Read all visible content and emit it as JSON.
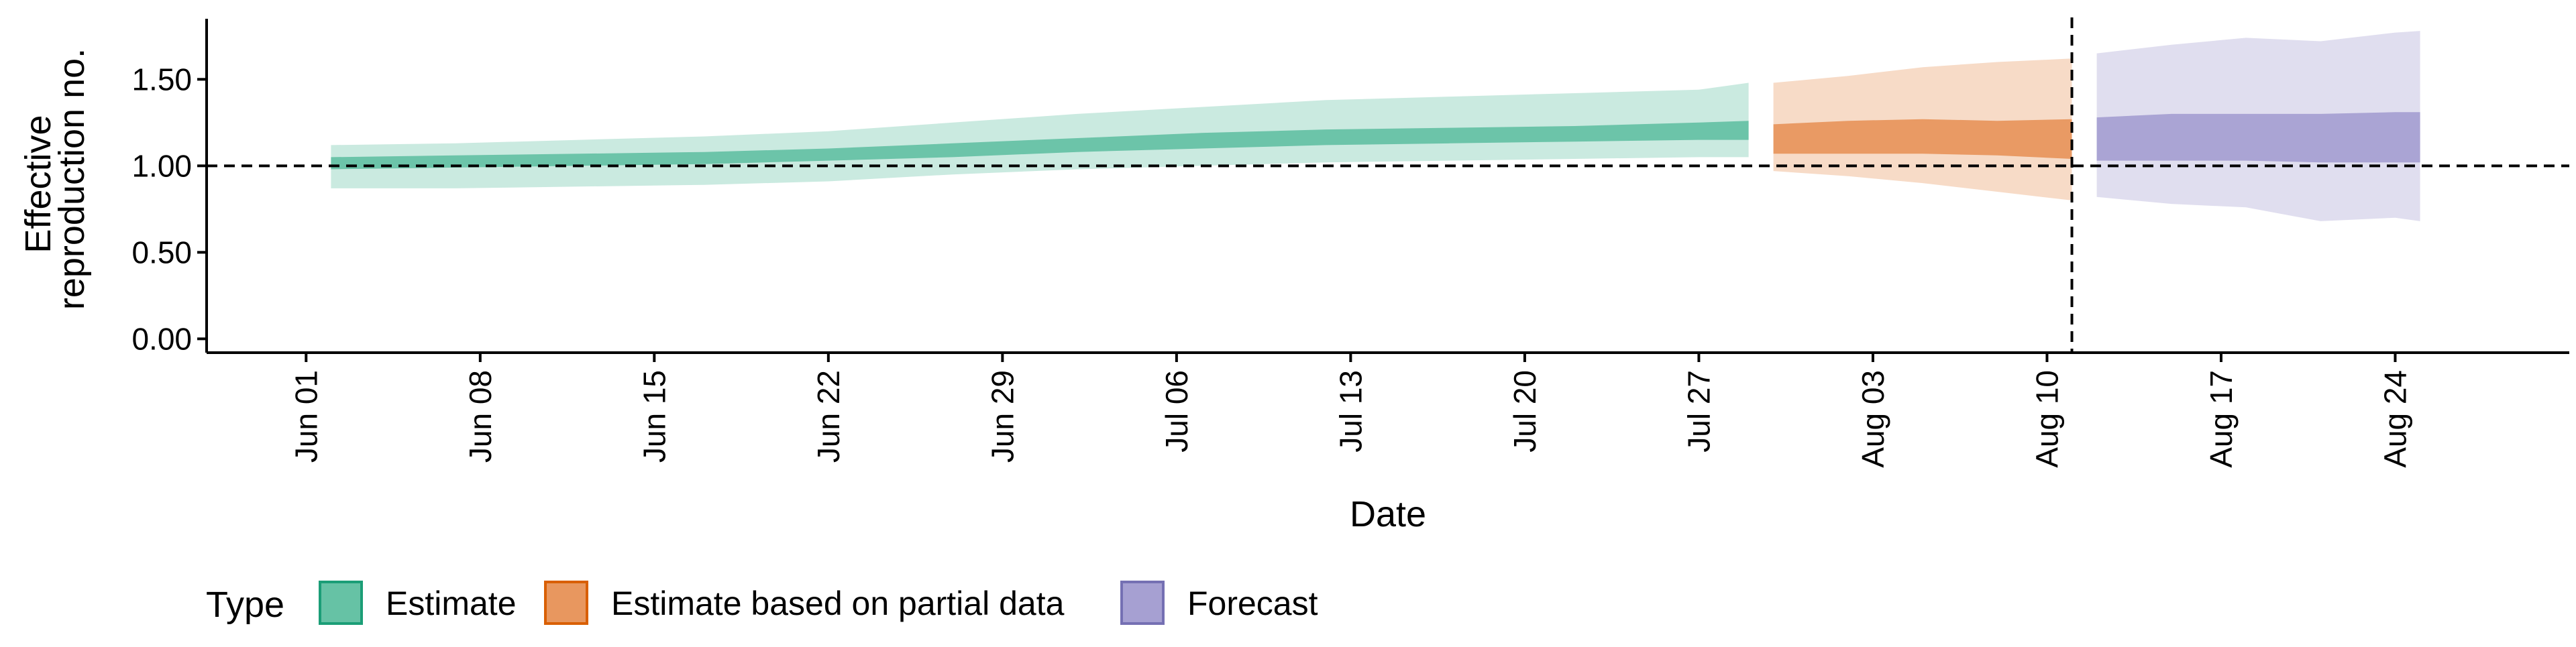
{
  "chart_data": {
    "type": "area",
    "xlabel": "Date",
    "ylabel_lines": [
      "Effective",
      "reproduction no."
    ],
    "x_ticks": [
      {
        "label": "Jun 01",
        "date": "2020-06-01"
      },
      {
        "label": "Jun 08",
        "date": "2020-06-08"
      },
      {
        "label": "Jun 15",
        "date": "2020-06-15"
      },
      {
        "label": "Jun 22",
        "date": "2020-06-22"
      },
      {
        "label": "Jun 29",
        "date": "2020-06-29"
      },
      {
        "label": "Jul 06",
        "date": "2020-07-06"
      },
      {
        "label": "Jul 13",
        "date": "2020-07-13"
      },
      {
        "label": "Jul 20",
        "date": "2020-07-20"
      },
      {
        "label": "Jul 27",
        "date": "2020-07-27"
      },
      {
        "label": "Aug 03",
        "date": "2020-08-03"
      },
      {
        "label": "Aug 10",
        "date": "2020-08-10"
      },
      {
        "label": "Aug 17",
        "date": "2020-08-17"
      },
      {
        "label": "Aug 24",
        "date": "2020-08-24"
      }
    ],
    "xlim": [
      "2020-05-28",
      "2020-08-31"
    ],
    "y_ticks": [
      {
        "label": "0.00",
        "value": 0
      },
      {
        "label": "0.50",
        "value": 0.5
      },
      {
        "label": "1.00",
        "value": 1
      },
      {
        "label": "1.50",
        "value": 1.5
      }
    ],
    "ylim": [
      -0.08,
      1.85
    ],
    "reference_lines": {
      "horizontal_y": 1.0,
      "vertical_x": "2020-08-11"
    },
    "legend": {
      "title": "Type",
      "position": "bottom-left",
      "items": [
        {
          "label": "Estimate",
          "fill": "#66c2a5",
          "stroke": "#1b9e77"
        },
        {
          "label": "Estimate based on partial data",
          "fill": "#e8975f",
          "stroke": "#d95f02"
        },
        {
          "label": "Forecast",
          "fill": "#a6a0d2",
          "stroke": "#7570b3"
        }
      ]
    },
    "series": [
      {
        "name": "Estimate",
        "color": "#1b9e77",
        "x": [
          "2020-06-02",
          "2020-06-07",
          "2020-06-12",
          "2020-06-17",
          "2020-06-22",
          "2020-06-27",
          "2020-07-02",
          "2020-07-07",
          "2020-07-12",
          "2020-07-17",
          "2020-07-22",
          "2020-07-27",
          "2020-07-29"
        ],
        "outer_lower": [
          0.87,
          0.87,
          0.88,
          0.89,
          0.91,
          0.95,
          0.98,
          1.0,
          1.02,
          1.03,
          1.04,
          1.05,
          1.05
        ],
        "outer_upper": [
          1.12,
          1.13,
          1.15,
          1.17,
          1.2,
          1.25,
          1.3,
          1.34,
          1.38,
          1.4,
          1.42,
          1.44,
          1.48
        ],
        "inner_lower": [
          0.98,
          0.99,
          1.0,
          1.01,
          1.03,
          1.05,
          1.08,
          1.1,
          1.12,
          1.13,
          1.14,
          1.15,
          1.15
        ],
        "inner_upper": [
          1.05,
          1.06,
          1.07,
          1.08,
          1.1,
          1.13,
          1.16,
          1.19,
          1.21,
          1.22,
          1.23,
          1.25,
          1.26
        ]
      },
      {
        "name": "Estimate based on partial data",
        "color": "#d95f02",
        "x": [
          "2020-07-30",
          "2020-08-02",
          "2020-08-05",
          "2020-08-08",
          "2020-08-11"
        ],
        "outer_lower": [
          0.97,
          0.94,
          0.9,
          0.85,
          0.8
        ],
        "outer_upper": [
          1.48,
          1.52,
          1.57,
          1.6,
          1.62
        ],
        "inner_lower": [
          1.07,
          1.07,
          1.07,
          1.06,
          1.04
        ],
        "inner_upper": [
          1.24,
          1.26,
          1.27,
          1.26,
          1.27
        ]
      },
      {
        "name": "Forecast",
        "color": "#7570b3",
        "x": [
          "2020-08-12",
          "2020-08-15",
          "2020-08-18",
          "2020-08-21",
          "2020-08-24",
          "2020-08-25"
        ],
        "outer_lower": [
          0.82,
          0.78,
          0.76,
          0.68,
          0.7,
          0.68
        ],
        "outer_upper": [
          1.65,
          1.7,
          1.74,
          1.72,
          1.77,
          1.78
        ],
        "inner_lower": [
          1.03,
          1.03,
          1.03,
          1.02,
          1.02,
          1.02
        ],
        "inner_upper": [
          1.28,
          1.3,
          1.3,
          1.3,
          1.31,
          1.31
        ]
      }
    ]
  }
}
